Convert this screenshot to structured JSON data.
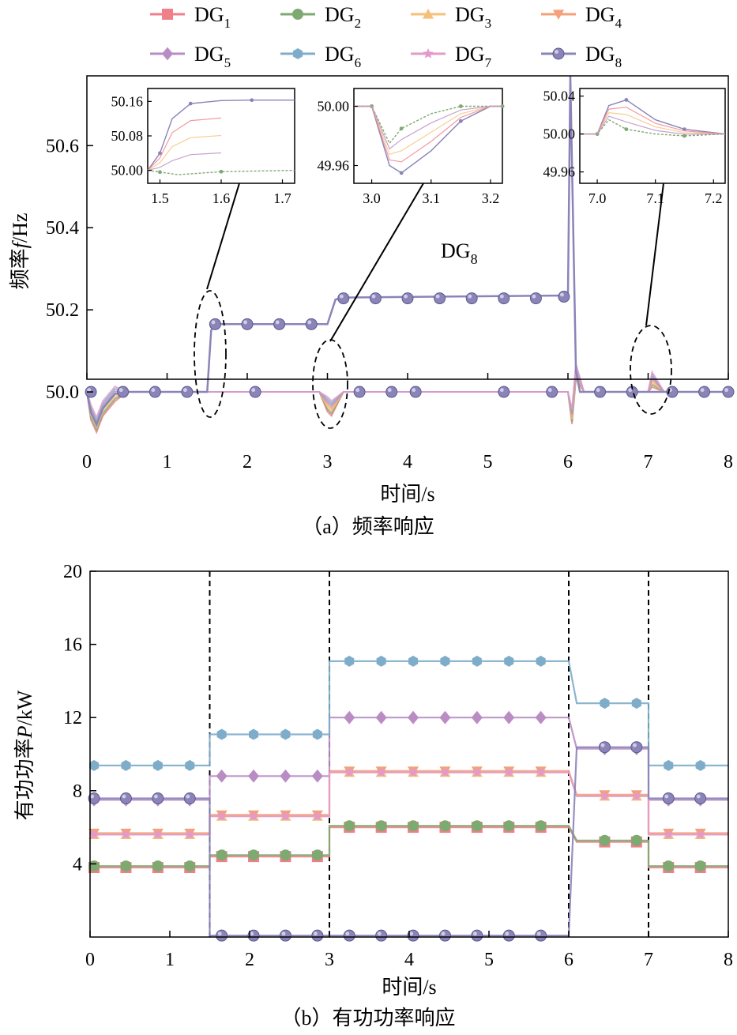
{
  "legend": {
    "items": [
      {
        "id": "DG1",
        "base": "DG",
        "sub": "1",
        "color": "#ef7f88",
        "marker": "square"
      },
      {
        "id": "DG2",
        "base": "DG",
        "sub": "2",
        "color": "#7eaa72",
        "marker": "circle"
      },
      {
        "id": "DG3",
        "base": "DG",
        "sub": "3",
        "color": "#f6c07a",
        "marker": "triangle-up"
      },
      {
        "id": "DG4",
        "base": "DG",
        "sub": "4",
        "color": "#f4a07a",
        "marker": "triangle-down"
      },
      {
        "id": "DG5",
        "base": "DG",
        "sub": "5",
        "color": "#b98cc4",
        "marker": "diamond"
      },
      {
        "id": "DG6",
        "base": "DG",
        "sub": "6",
        "color": "#7fadc9",
        "marker": "hexagon"
      },
      {
        "id": "DG7",
        "base": "DG",
        "sub": "7",
        "color": "#e39acb",
        "marker": "star"
      },
      {
        "id": "DG8",
        "base": "DG",
        "sub": "8",
        "color": "#8a84b8",
        "marker": "sphere"
      }
    ]
  },
  "chart_data": [
    {
      "type": "line",
      "caption": "（a）频率响应",
      "xlabel": "时间/s",
      "ylabel": "频率f/Hz",
      "xlim": [
        0,
        8
      ],
      "ylim": [
        49.9,
        50.77
      ],
      "xticks": [
        "0",
        "1",
        "2",
        "3",
        "4",
        "5",
        "6",
        "7",
        "8"
      ],
      "yticks": [
        "50.0",
        "50.2",
        "50.4",
        "50.6"
      ],
      "annotation": {
        "base": "DG",
        "sub": "8"
      },
      "series": [
        {
          "name": "DG1..DG7",
          "x": [
            0,
            0.05,
            0.12,
            0.2,
            0.35,
            0.5,
            1.5,
            2.9,
            3.0,
            3.05,
            3.2,
            6.0,
            6.05,
            6.1,
            6.2,
            7.0,
            7.05,
            7.2,
            8.0
          ],
          "y": [
            50.0,
            49.95,
            49.92,
            49.96,
            49.995,
            50.0,
            50.0,
            50.0,
            49.97,
            49.96,
            50.0,
            50.0,
            49.94,
            50.05,
            50.0,
            50.0,
            50.03,
            50.0,
            50.0
          ]
        },
        {
          "name": "DG8",
          "x": [
            0,
            0.05,
            0.12,
            0.2,
            0.35,
            0.5,
            1.5,
            1.55,
            1.6,
            3.0,
            3.1,
            3.2,
            6.0,
            6.03,
            6.1,
            6.15,
            8.0
          ],
          "y": [
            50.0,
            49.95,
            49.92,
            49.96,
            49.995,
            50.0,
            50.0,
            50.15,
            50.165,
            50.165,
            50.225,
            50.23,
            50.235,
            50.77,
            50.05,
            50.0,
            50.0
          ]
        }
      ],
      "insets": [
        {
          "xlim": [
            1.48,
            1.72
          ],
          "ylim": [
            49.97,
            50.19
          ],
          "xticks": [
            "1.5",
            "1.6",
            "1.7"
          ],
          "yticks": [
            "50.00",
            "50.08",
            "50.16"
          ],
          "series": [
            {
              "name": "DG8",
              "x": [
                1.48,
                1.5,
                1.52,
                1.55,
                1.6,
                1.65,
                1.72
              ],
              "y": [
                50.0,
                50.04,
                50.12,
                50.155,
                50.162,
                50.163,
                50.163
              ]
            },
            {
              "name": "others",
              "x": [
                1.48,
                1.5,
                1.53,
                1.6,
                1.72
              ],
              "y": [
                50.0,
                49.996,
                49.99,
                49.997,
                50.0
              ]
            }
          ]
        },
        {
          "xlim": [
            2.97,
            3.22
          ],
          "ylim": [
            49.948,
            50.012
          ],
          "xticks": [
            "3.0",
            "3.1",
            "3.2"
          ],
          "yticks": [
            "49.96",
            "50.00"
          ],
          "series": [
            {
              "name": "min",
              "x": [
                2.97,
                3.0,
                3.03,
                3.05,
                3.1,
                3.15,
                3.2,
                3.22
              ],
              "y": [
                50.0,
                50.0,
                49.96,
                49.955,
                49.97,
                49.99,
                50.0,
                50.0
              ]
            },
            {
              "name": "max",
              "x": [
                2.97,
                3.0,
                3.03,
                3.05,
                3.1,
                3.15,
                3.2,
                3.22
              ],
              "y": [
                50.0,
                50.0,
                49.975,
                49.985,
                49.995,
                50.0,
                50.0,
                50.0
              ]
            }
          ]
        },
        {
          "xlim": [
            6.97,
            7.22
          ],
          "ylim": [
            49.948,
            50.048
          ],
          "xticks": [
            "7.0",
            "7.1",
            "7.2"
          ],
          "yticks": [
            "49.96",
            "50.00",
            "50.04"
          ],
          "series": [
            {
              "name": "max",
              "x": [
                6.97,
                7.0,
                7.02,
                7.05,
                7.1,
                7.15,
                7.22
              ],
              "y": [
                50.0,
                50.0,
                50.03,
                50.036,
                50.015,
                50.005,
                50.0
              ]
            },
            {
              "name": "min",
              "x": [
                6.97,
                7.0,
                7.02,
                7.05,
                7.1,
                7.15,
                7.22
              ],
              "y": [
                50.0,
                50.0,
                50.015,
                50.005,
                50.0,
                49.998,
                50.0
              ]
            }
          ]
        }
      ]
    },
    {
      "type": "line",
      "caption": "（b）有功功率响应",
      "xlabel": "时间/s",
      "ylabel": "有功功率P/kW",
      "xlim": [
        0,
        8
      ],
      "ylim": [
        0,
        20
      ],
      "xticks": [
        "0",
        "1",
        "2",
        "3",
        "4",
        "5",
        "6",
        "7",
        "8"
      ],
      "yticks": [
        "4",
        "8",
        "12",
        "16",
        "20"
      ],
      "event_lines": [
        1.5,
        3.0,
        6.0,
        7.0
      ],
      "series": [
        {
          "name": "DG1",
          "x": [
            0,
            1.5,
            1.5,
            3.0,
            3.0,
            6.0,
            6.1,
            7.0,
            7.0,
            8.0
          ],
          "y": [
            3.8,
            3.8,
            4.4,
            4.4,
            6.0,
            6.0,
            5.2,
            5.2,
            3.8,
            3.8
          ]
        },
        {
          "name": "DG2",
          "x": [
            0,
            1.5,
            1.5,
            3.0,
            3.0,
            6.0,
            6.1,
            7.0,
            7.0,
            8.0
          ],
          "y": [
            3.8,
            3.8,
            4.4,
            4.4,
            6.0,
            6.0,
            5.2,
            5.2,
            3.8,
            3.8
          ]
        },
        {
          "name": "DG3",
          "x": [
            0,
            1.5,
            1.5,
            3.0,
            3.0,
            6.0,
            6.1,
            7.0,
            7.0,
            8.0
          ],
          "y": [
            5.6,
            5.6,
            6.6,
            6.6,
            9.0,
            9.0,
            7.7,
            7.7,
            5.6,
            5.6
          ]
        },
        {
          "name": "DG4",
          "x": [
            0,
            1.5,
            1.5,
            3.0,
            3.0,
            6.0,
            6.1,
            7.0,
            7.0,
            8.0
          ],
          "y": [
            5.6,
            5.6,
            6.6,
            6.6,
            9.0,
            9.0,
            7.7,
            7.7,
            5.6,
            5.6
          ]
        },
        {
          "name": "DG5",
          "x": [
            0,
            1.5,
            1.5,
            3.0,
            3.0,
            6.0,
            6.1,
            7.0,
            7.0,
            8.0
          ],
          "y": [
            7.5,
            7.5,
            8.8,
            8.8,
            12.0,
            12.0,
            10.3,
            10.3,
            7.5,
            7.5
          ]
        },
        {
          "name": "DG6",
          "x": [
            0,
            1.5,
            1.5,
            3.0,
            3.0,
            6.0,
            6.1,
            7.0,
            7.0,
            8.0
          ],
          "y": [
            9.3,
            9.3,
            11.0,
            11.0,
            15.0,
            15.0,
            12.7,
            12.7,
            9.3,
            9.3
          ]
        },
        {
          "name": "DG7",
          "x": [
            0,
            1.5,
            1.5,
            3.0,
            3.0,
            6.0,
            6.1,
            7.0,
            7.0,
            8.0
          ],
          "y": [
            5.6,
            5.6,
            6.6,
            6.6,
            9.0,
            9.0,
            7.7,
            7.7,
            5.6,
            5.6
          ]
        },
        {
          "name": "DG8",
          "x": [
            0,
            1.5,
            1.5,
            6.0,
            6.1,
            7.0,
            7.0,
            8.0
          ],
          "y": [
            7.5,
            7.5,
            0.0,
            0.0,
            10.3,
            10.3,
            7.5,
            7.5
          ]
        }
      ]
    }
  ]
}
